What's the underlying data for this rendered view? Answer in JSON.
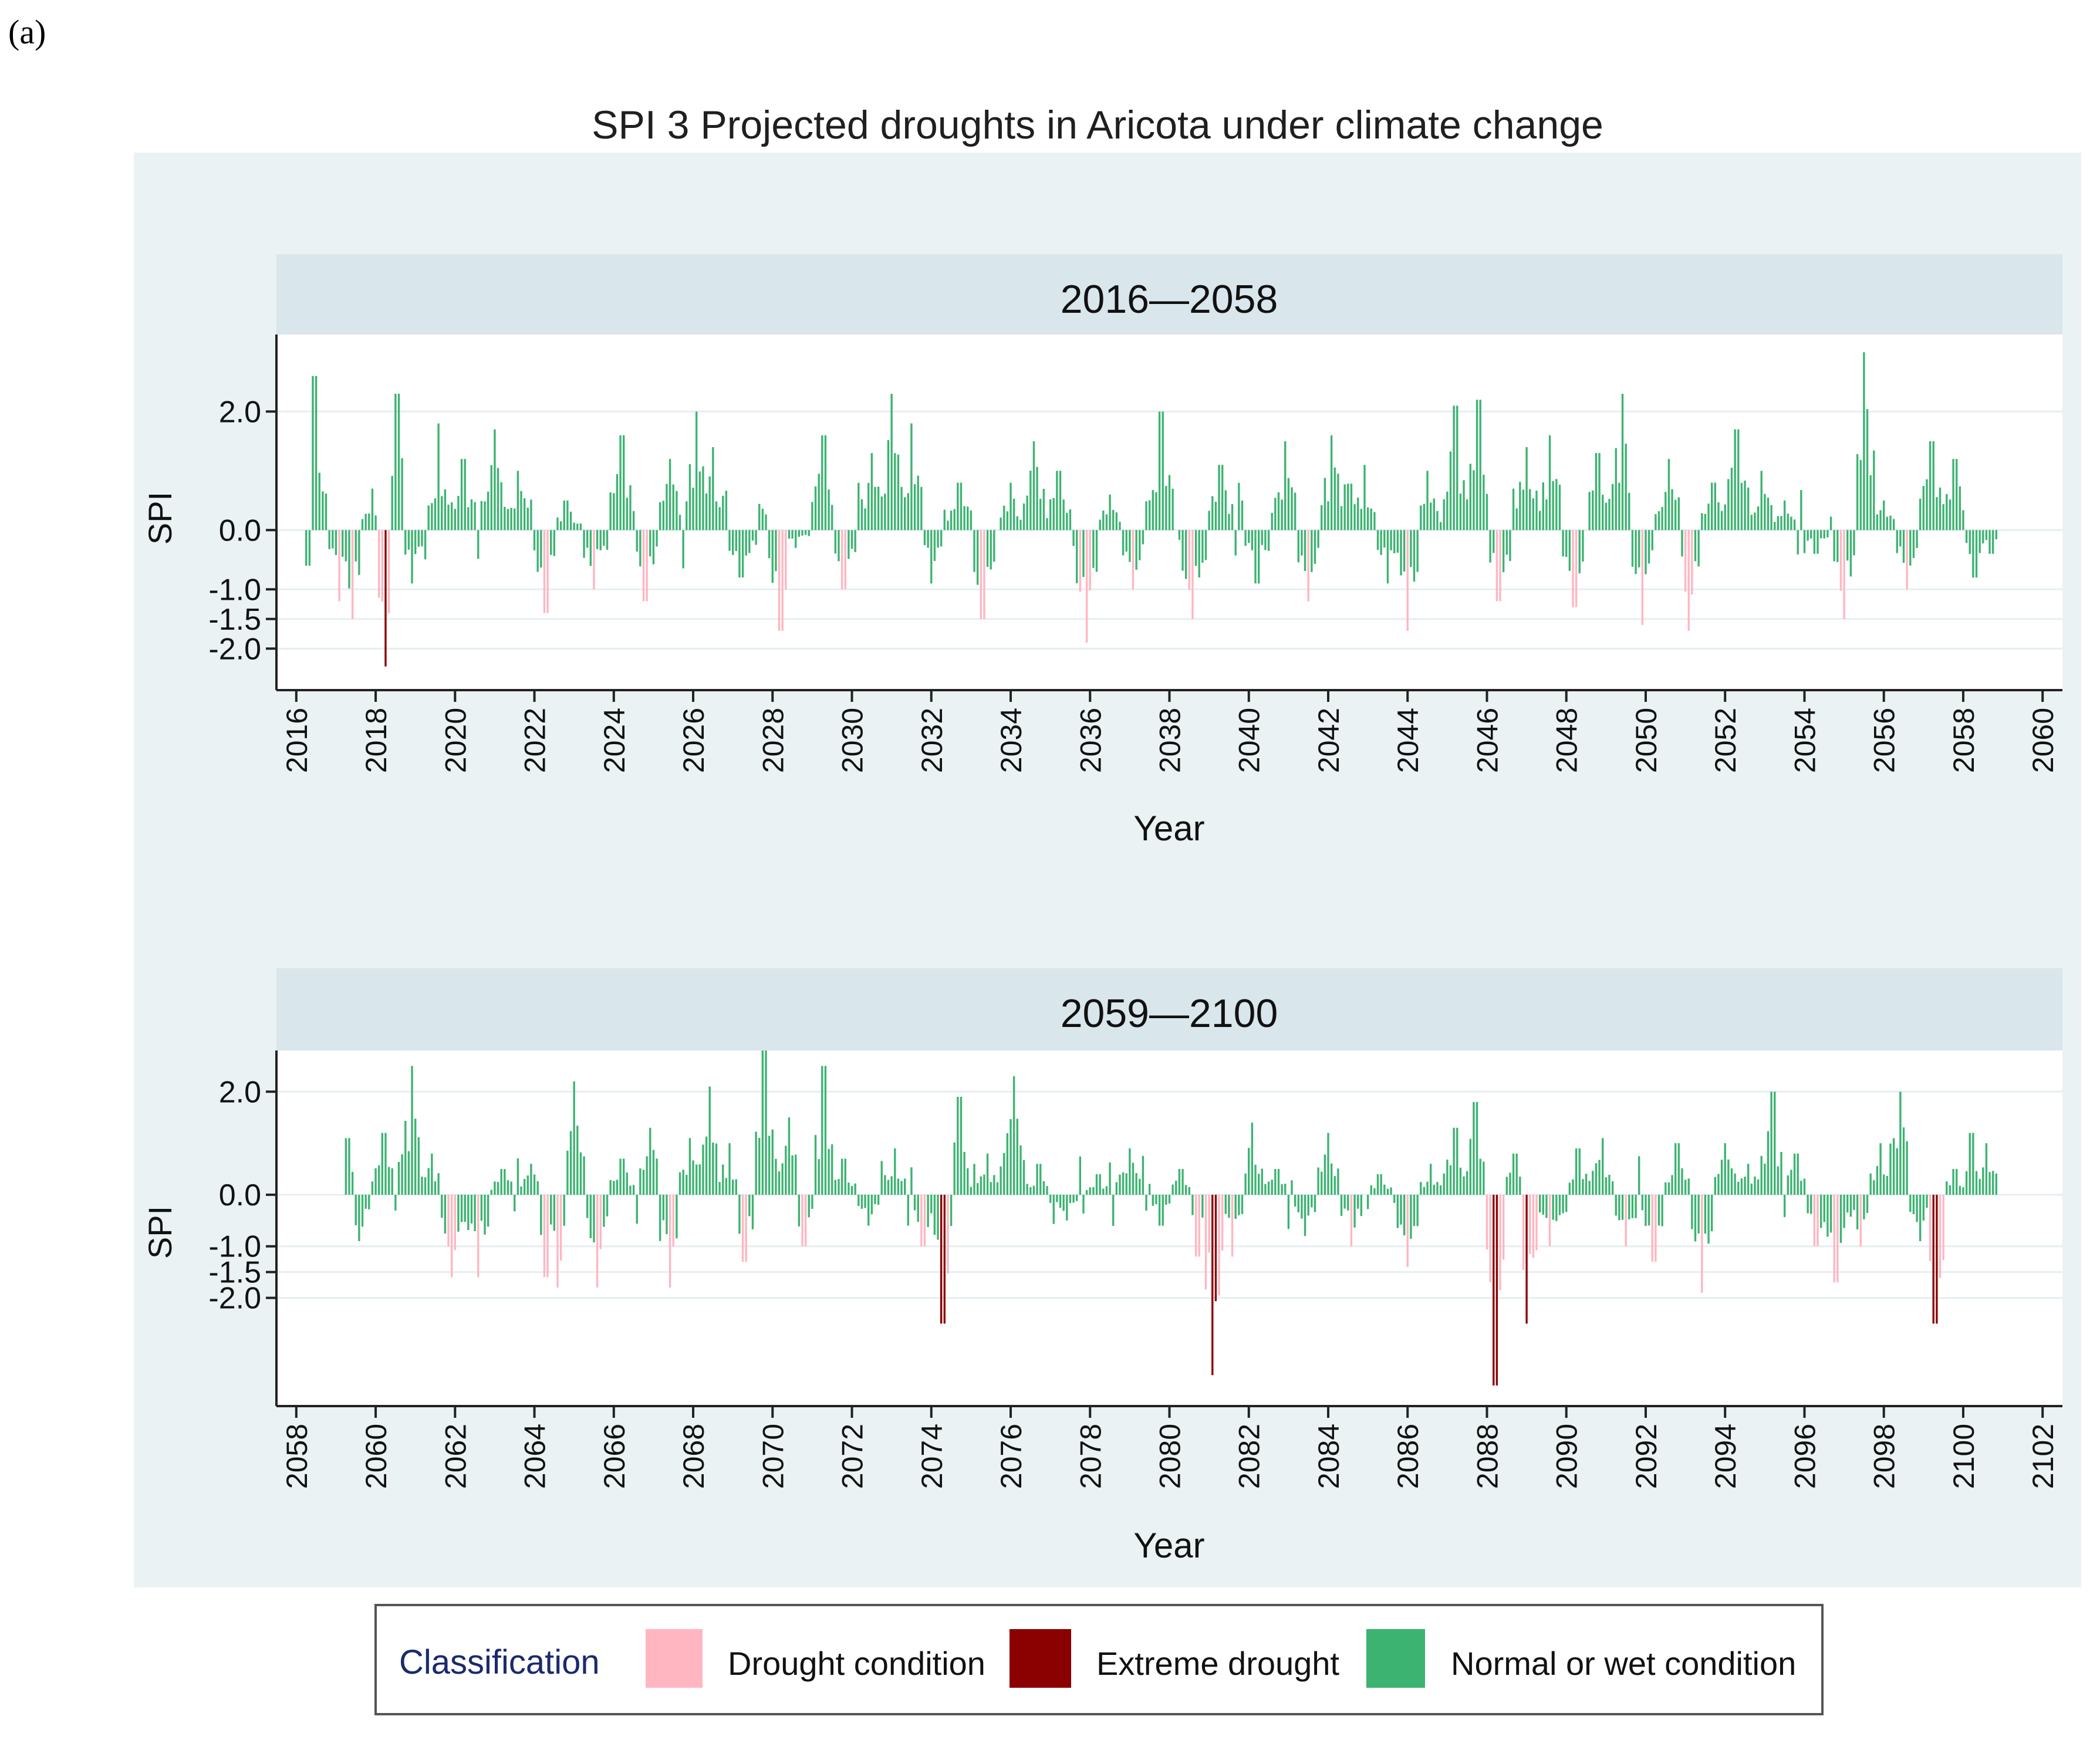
{
  "panel_label": "(a)",
  "chart_data": {
    "type": "bar",
    "title": "SPI 3 Projected droughts in Aricota under climate change",
    "xlabel": "Year",
    "ylabel": "SPI",
    "y_ticks": [
      2.0,
      0.0,
      -1.0,
      -1.5,
      -2.0
    ],
    "y_tick_labels": [
      "2.0",
      "0.0",
      "-1.0",
      "-1.5",
      "-2.0"
    ],
    "classification_thresholds": {
      "drought": -1.0,
      "extreme": -2.0
    },
    "colors": {
      "drought": "#FFB6C1",
      "extreme": "#8B0000",
      "normal": "#3CB371",
      "plot_region": "#EAF2F3",
      "strip": "#D9E6EB",
      "gridline": "#E6EEF0"
    },
    "legend": {
      "title": "Classification",
      "entries": [
        {
          "key": "drought",
          "label": "Drought condition"
        },
        {
          "key": "extreme",
          "label": "Extreme drought"
        },
        {
          "key": "normal",
          "label": "Normal or wet condition"
        }
      ]
    },
    "panels": [
      {
        "strip_label": "2016—2058",
        "x_range": [
          2015.5,
          2060.5
        ],
        "y_range": [
          -2.7,
          3.3
        ],
        "x_ticks": [
          2016,
          2018,
          2020,
          2022,
          2024,
          2026,
          2028,
          2030,
          2032,
          2034,
          2036,
          2038,
          2040,
          2042,
          2044,
          2046,
          2048,
          2050,
          2052,
          2054,
          2056,
          2058,
          2060
        ],
        "series_start": 2016.25,
        "series_end": 2058.83,
        "peaks": [
          [
            2016.3,
            -0.6
          ],
          [
            2016.45,
            2.6
          ],
          [
            2017.1,
            -1.2
          ],
          [
            2017.4,
            -1.5
          ],
          [
            2017.9,
            0.7
          ],
          [
            2018.25,
            -2.3
          ],
          [
            2018.55,
            2.3
          ],
          [
            2018.9,
            -0.9
          ],
          [
            2019.6,
            1.8
          ],
          [
            2020.2,
            1.2
          ],
          [
            2021.0,
            1.7
          ],
          [
            2021.6,
            1.0
          ],
          [
            2022.3,
            -1.4
          ],
          [
            2022.8,
            0.5
          ],
          [
            2023.5,
            -1.0
          ],
          [
            2024.2,
            1.6
          ],
          [
            2024.8,
            -1.2
          ],
          [
            2025.4,
            1.2
          ],
          [
            2026.1,
            2.0
          ],
          [
            2026.5,
            1.4
          ],
          [
            2027.2,
            -0.8
          ],
          [
            2028.2,
            -1.7
          ],
          [
            2028.6,
            -0.3
          ],
          [
            2029.3,
            1.6
          ],
          [
            2029.8,
            -1.0
          ],
          [
            2030.5,
            1.3
          ],
          [
            2031.0,
            2.3
          ],
          [
            2031.5,
            1.8
          ],
          [
            2032.0,
            -0.9
          ],
          [
            2032.7,
            0.8
          ],
          [
            2033.3,
            -1.5
          ],
          [
            2034.0,
            0.8
          ],
          [
            2034.6,
            1.5
          ],
          [
            2035.2,
            1.0
          ],
          [
            2035.9,
            -1.9
          ],
          [
            2036.5,
            0.6
          ],
          [
            2037.1,
            -1.0
          ],
          [
            2037.8,
            2.0
          ],
          [
            2038.6,
            -1.5
          ],
          [
            2039.3,
            1.1
          ],
          [
            2040.2,
            -0.9
          ],
          [
            2040.9,
            1.5
          ],
          [
            2041.5,
            -1.2
          ],
          [
            2042.1,
            1.6
          ],
          [
            2042.9,
            1.1
          ],
          [
            2043.5,
            -0.9
          ],
          [
            2044.0,
            -1.7
          ],
          [
            2044.5,
            1.0
          ],
          [
            2045.2,
            2.1
          ],
          [
            2045.8,
            2.2
          ],
          [
            2046.3,
            -1.2
          ],
          [
            2047.0,
            1.4
          ],
          [
            2047.6,
            1.6
          ],
          [
            2048.2,
            -1.3
          ],
          [
            2048.8,
            1.3
          ],
          [
            2049.4,
            2.3
          ],
          [
            2049.9,
            -1.6
          ],
          [
            2050.6,
            1.2
          ],
          [
            2051.1,
            -1.7
          ],
          [
            2051.7,
            0.8
          ],
          [
            2052.3,
            1.7
          ],
          [
            2052.9,
            1.0
          ],
          [
            2053.5,
            0.5
          ],
          [
            2054.3,
            -0.4
          ],
          [
            2055.0,
            -1.5
          ],
          [
            2055.5,
            3.0
          ],
          [
            2056.0,
            0.5
          ],
          [
            2056.6,
            -1.0
          ],
          [
            2057.2,
            1.5
          ],
          [
            2057.8,
            1.2
          ],
          [
            2058.3,
            -0.8
          ],
          [
            2058.7,
            -0.4
          ]
        ]
      },
      {
        "strip_label": "2059—2100",
        "x_range": [
          2057.5,
          2102.5
        ],
        "y_range": [
          -4.1,
          2.8
        ],
        "x_ticks": [
          2058,
          2060,
          2062,
          2064,
          2066,
          2068,
          2070,
          2072,
          2074,
          2076,
          2078,
          2080,
          2082,
          2084,
          2086,
          2088,
          2090,
          2092,
          2094,
          2096,
          2098,
          2100,
          2102
        ],
        "series_start": 2059.25,
        "series_end": 2100.83,
        "peaks": [
          [
            2059.3,
            1.1
          ],
          [
            2059.6,
            -0.9
          ],
          [
            2060.2,
            1.2
          ],
          [
            2060.9,
            2.5
          ],
          [
            2061.4,
            0.8
          ],
          [
            2061.9,
            -1.6
          ],
          [
            2062.6,
            -1.6
          ],
          [
            2063.2,
            0.5
          ],
          [
            2063.9,
            0.6
          ],
          [
            2064.3,
            -1.6
          ],
          [
            2064.6,
            -1.8
          ],
          [
            2065.0,
            2.2
          ],
          [
            2065.6,
            -1.8
          ],
          [
            2066.2,
            0.7
          ],
          [
            2066.9,
            1.3
          ],
          [
            2067.4,
            -1.8
          ],
          [
            2067.9,
            1.1
          ],
          [
            2068.4,
            2.1
          ],
          [
            2068.9,
            1.0
          ],
          [
            2069.3,
            -1.3
          ],
          [
            2069.8,
            2.8
          ],
          [
            2070.4,
            1.5
          ],
          [
            2070.8,
            -1.0
          ],
          [
            2071.3,
            2.5
          ],
          [
            2071.8,
            0.7
          ],
          [
            2072.4,
            -0.6
          ],
          [
            2073.1,
            0.9
          ],
          [
            2073.8,
            -1.0
          ],
          [
            2074.3,
            -2.5
          ],
          [
            2074.7,
            1.9
          ],
          [
            2075.4,
            0.8
          ],
          [
            2076.1,
            2.3
          ],
          [
            2076.7,
            0.6
          ],
          [
            2077.4,
            -0.5
          ],
          [
            2078.2,
            0.4
          ],
          [
            2079.0,
            0.9
          ],
          [
            2079.8,
            -0.6
          ],
          [
            2080.3,
            0.5
          ],
          [
            2080.7,
            -1.2
          ],
          [
            2081.1,
            -3.5
          ],
          [
            2081.6,
            -1.2
          ],
          [
            2082.1,
            1.4
          ],
          [
            2082.7,
            0.5
          ],
          [
            2083.4,
            -0.8
          ],
          [
            2084.0,
            1.2
          ],
          [
            2084.6,
            -1.0
          ],
          [
            2085.3,
            0.4
          ],
          [
            2086.0,
            -1.4
          ],
          [
            2086.6,
            0.6
          ],
          [
            2087.2,
            1.3
          ],
          [
            2087.7,
            1.8
          ],
          [
            2088.2,
            -3.7
          ],
          [
            2088.7,
            0.8
          ],
          [
            2089.0,
            -2.5
          ],
          [
            2089.6,
            -1.0
          ],
          [
            2090.3,
            0.9
          ],
          [
            2090.9,
            1.1
          ],
          [
            2091.5,
            -1.0
          ],
          [
            2092.2,
            -1.3
          ],
          [
            2092.8,
            1.0
          ],
          [
            2093.4,
            -1.9
          ],
          [
            2094.0,
            1.0
          ],
          [
            2094.6,
            0.6
          ],
          [
            2095.2,
            2.0
          ],
          [
            2095.8,
            0.8
          ],
          [
            2096.3,
            -1.0
          ],
          [
            2096.8,
            -1.7
          ],
          [
            2097.4,
            -1.0
          ],
          [
            2097.9,
            1.0
          ],
          [
            2098.4,
            2.0
          ],
          [
            2098.9,
            -0.9
          ],
          [
            2099.3,
            -2.5
          ],
          [
            2099.8,
            0.5
          ],
          [
            2100.2,
            1.2
          ],
          [
            2100.6,
            1.0
          ]
        ]
      }
    ]
  }
}
